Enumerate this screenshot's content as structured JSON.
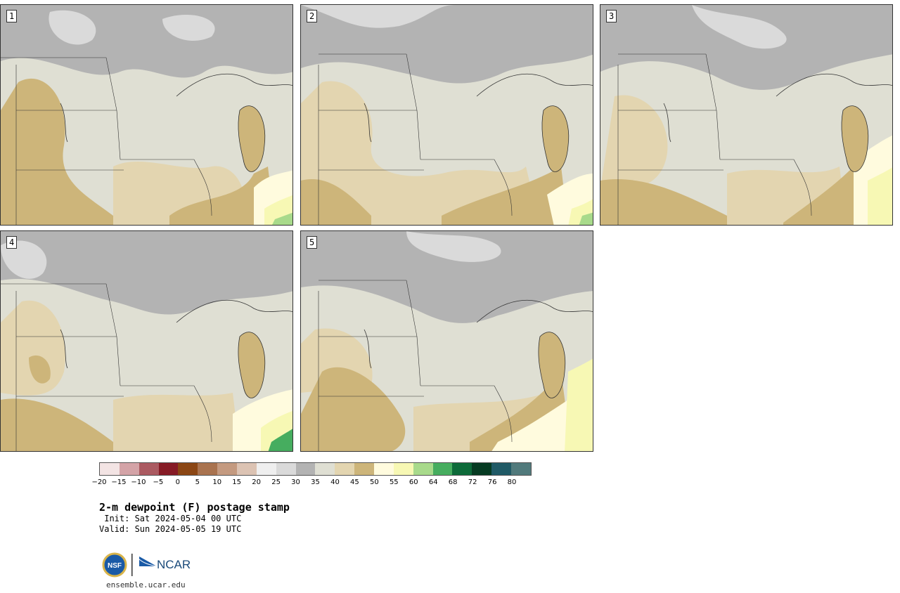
{
  "panels": [
    {
      "label": "1"
    },
    {
      "label": "2"
    },
    {
      "label": "3"
    },
    {
      "label": "4"
    },
    {
      "label": "5"
    }
  ],
  "colorbar": {
    "ticks": [
      "−20",
      "−15",
      "−10",
      "−5",
      "0",
      "5",
      "10",
      "15",
      "20",
      "25",
      "30",
      "35",
      "40",
      "45",
      "50",
      "55",
      "60",
      "64",
      "68",
      "72",
      "76",
      "80"
    ],
    "colors": [
      "#f3e4e4",
      "#d4a3a7",
      "#ab5a61",
      "#861b25",
      "#8b4614",
      "#a9734f",
      "#c49a80",
      "#dcc3b3",
      "#efefef",
      "#dadada",
      "#b3b3b3",
      "#dfdfd3",
      "#e3d5b0",
      "#cdb57a",
      "#fffbde",
      "#f7f8b4",
      "#a8da8b",
      "#46ad5f",
      "#0d6a39",
      "#063b22",
      "#205a66",
      "#517a7c"
    ]
  },
  "title": "2-m dewpoint (F) postage stamp",
  "init": " Init: Sat 2024-05-04 00 UTC",
  "valid": "Valid: Sun 2024-05-05 19 UTC",
  "logo": {
    "nsf": "NSF",
    "ncar": "NCAR"
  },
  "url": "ensemble.ucar.edu"
}
